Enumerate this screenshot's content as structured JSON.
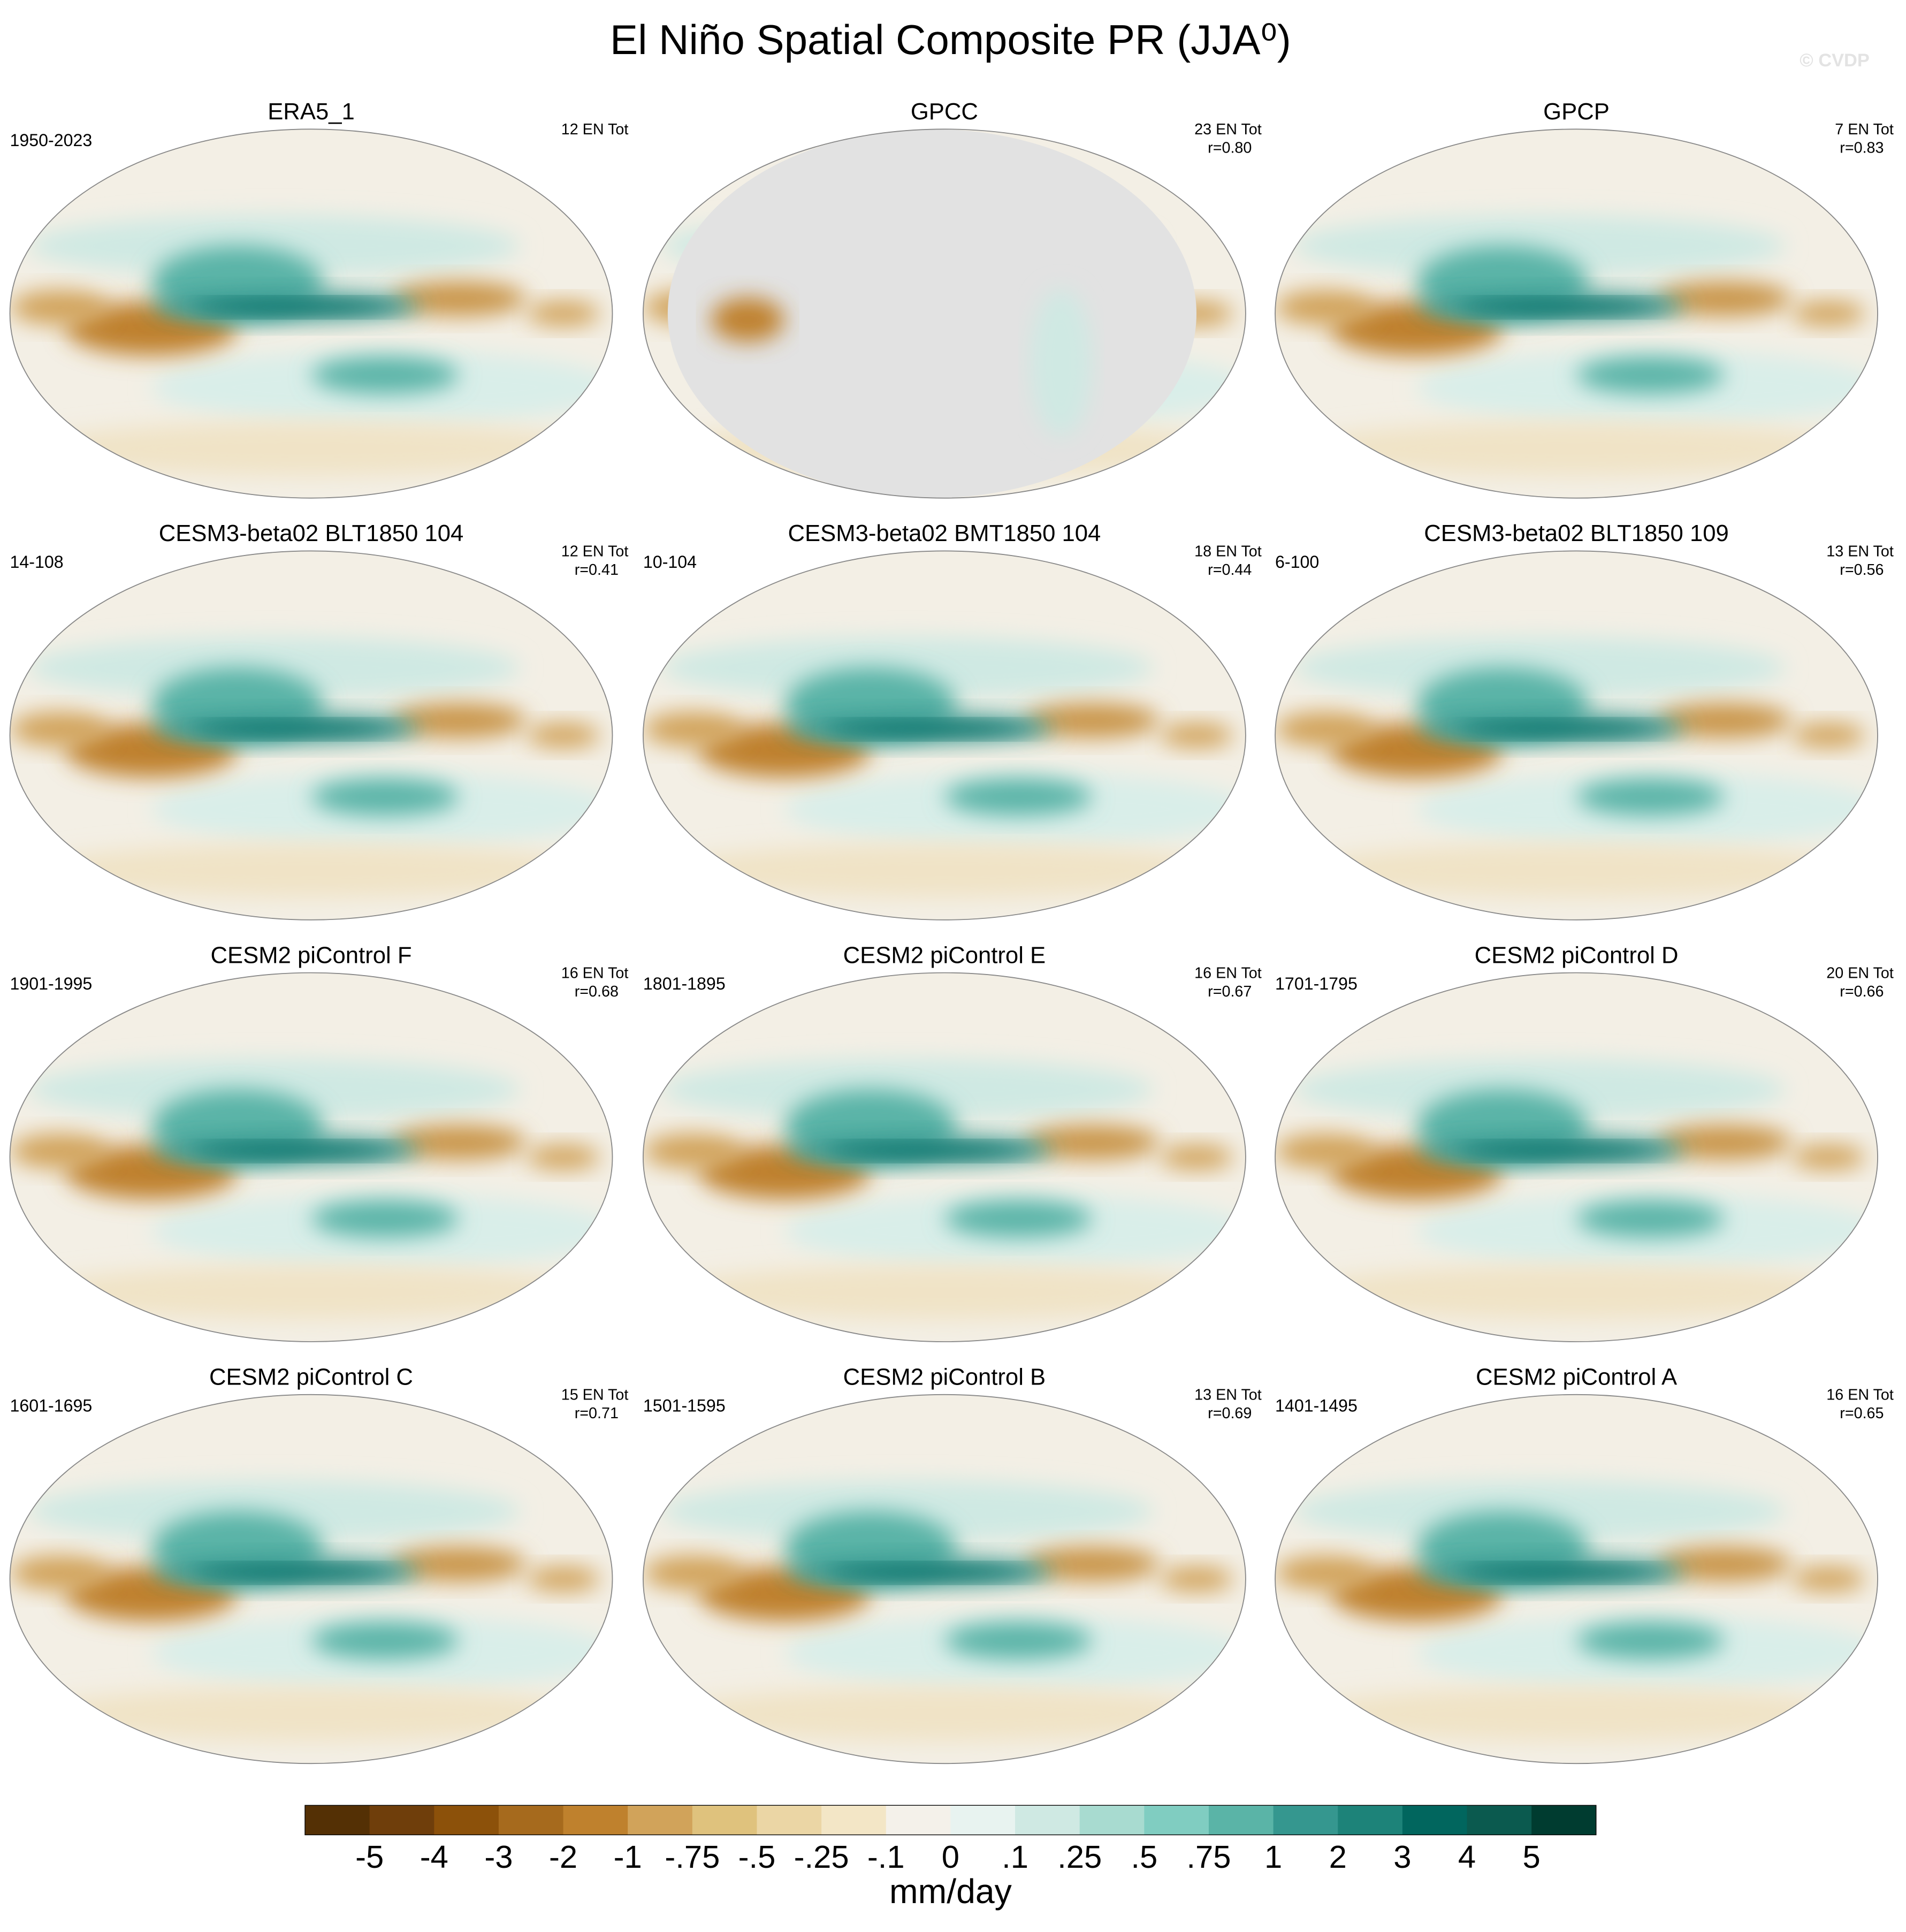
{
  "chart_data": {
    "type": "map-grid",
    "title": "El Niño Spatial Composite PR (JJA⁰)",
    "watermark": "© CVDP",
    "panels": [
      {
        "title": "ERA5_1",
        "period": "1950-2023",
        "count": "12 EN Tot"
      },
      {
        "title": "GPCC",
        "count": "23 EN Tot",
        "r": "r=0.80",
        "masked": true
      },
      {
        "title": "GPCP",
        "count": "7 EN Tot",
        "r": "r=0.83"
      },
      {
        "title": "CESM3-beta02 BLT1850 104",
        "period": "14-108",
        "count": "12 EN Tot",
        "r": "r=0.41"
      },
      {
        "title": "CESM3-beta02 BMT1850 104",
        "period": "10-104",
        "count": "18 EN Tot",
        "r": "r=0.44"
      },
      {
        "title": "CESM3-beta02 BLT1850 109",
        "period": "6-100",
        "count": "13 EN Tot",
        "r": "r=0.56"
      },
      {
        "title": "CESM2 piControl F",
        "period": "1901-1995",
        "count": "16 EN Tot",
        "r": "r=0.68"
      },
      {
        "title": "CESM2 piControl E",
        "period": "1801-1895",
        "count": "16 EN Tot",
        "r": "r=0.67"
      },
      {
        "title": "CESM2 piControl D",
        "period": "1701-1795",
        "count": "20 EN Tot",
        "r": "r=0.66"
      },
      {
        "title": "CESM2 piControl C",
        "period": "1601-1695",
        "count": "15 EN Tot",
        "r": "r=0.71"
      },
      {
        "title": "CESM2 piControl B",
        "period": "1501-1595",
        "count": "13 EN Tot",
        "r": "r=0.69"
      },
      {
        "title": "CESM2 piControl A",
        "period": "1401-1495",
        "count": "16 EN Tot",
        "r": "r=0.65"
      }
    ],
    "colorbar": {
      "label": "mm/day",
      "colors": [
        "#543005",
        "#6f3e0b",
        "#8c510a",
        "#a66a1d",
        "#bf812d",
        "#d1a35a",
        "#dfc27d",
        "#ebd6a5",
        "#f3e6c6",
        "#f4f1ea",
        "#e8f3f0",
        "#cfe9e3",
        "#a8dbd0",
        "#80cdc1",
        "#5ab4a7",
        "#35978f",
        "#1d8379",
        "#01665e",
        "#0b5a4f",
        "#003c30"
      ],
      "ticks": [
        -5,
        -4,
        -3,
        -2,
        -1,
        {
          "value": -0.75,
          "label": "-.75"
        },
        {
          "value": -0.5,
          "label": "-.5"
        },
        {
          "value": -0.25,
          "label": "-.25"
        },
        {
          "value": -0.1,
          "label": "-.1"
        },
        0,
        {
          "value": 0.1,
          "label": ".1"
        },
        {
          "value": 0.25,
          "label": ".25"
        },
        {
          "value": 0.5,
          "label": ".5"
        },
        {
          "value": 0.75,
          "label": ".75"
        },
        1,
        2,
        3,
        4,
        5
      ]
    }
  }
}
